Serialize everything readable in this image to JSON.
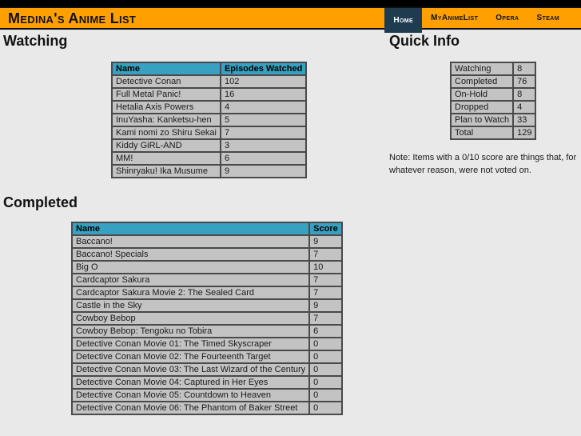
{
  "header": {
    "title": "Medina's Anime List",
    "nav": [
      {
        "label": "Home",
        "active": true
      },
      {
        "label": "MyAnimeList",
        "active": false
      },
      {
        "label": "Opera",
        "active": false
      },
      {
        "label": "Steam",
        "active": false
      }
    ]
  },
  "watching": {
    "heading": "Watching",
    "columns": [
      "Name",
      "Episodes Watched"
    ],
    "rows": [
      [
        "Detective Conan",
        "102"
      ],
      [
        "Full Metal Panic!",
        "16"
      ],
      [
        "Hetalia Axis Powers",
        "4"
      ],
      [
        "InuYasha: Kanketsu-hen",
        "5"
      ],
      [
        "Kami nomi zo Shiru Sekai",
        "7"
      ],
      [
        "Kiddy GiRL-AND",
        "3"
      ],
      [
        "MM!",
        "6"
      ],
      [
        "Shinryaku! Ika Musume",
        "9"
      ]
    ]
  },
  "quick_info": {
    "heading": "Quick Info",
    "rows": [
      [
        "Watching",
        "8"
      ],
      [
        "Completed",
        "76"
      ],
      [
        "On-Hold",
        "8"
      ],
      [
        "Dropped",
        "4"
      ],
      [
        "Plan to Watch",
        "33"
      ],
      [
        "Total",
        "129"
      ]
    ],
    "note": "Note: Items with a 0/10 score are things that, for whatever reason, were not voted on."
  },
  "completed": {
    "heading": "Completed",
    "columns": [
      "Name",
      "Score"
    ],
    "rows": [
      [
        "Baccano!",
        "9"
      ],
      [
        "Baccano! Specials",
        "7"
      ],
      [
        "Big O",
        "10"
      ],
      [
        "Cardcaptor Sakura",
        "7"
      ],
      [
        "Cardcaptor Sakura Movie 2: The Sealed Card",
        "7"
      ],
      [
        "Castle in the Sky",
        "9"
      ],
      [
        "Cowboy Bebop",
        "7"
      ],
      [
        "Cowboy Bebop: Tengoku no Tobira",
        "6"
      ],
      [
        "Detective Conan Movie 01: The Timed Skyscraper",
        "0"
      ],
      [
        "Detective Conan Movie 02: The Fourteenth Target",
        "0"
      ],
      [
        "Detective Conan Movie 03: The Last Wizard of the Century",
        "0"
      ],
      [
        "Detective Conan Movie 04: Captured in Her Eyes",
        "0"
      ],
      [
        "Detective Conan Movie 05: Countdown to Heaven",
        "0"
      ],
      [
        "Detective Conan Movie 06: The Phantom of Baker Street",
        "0"
      ]
    ]
  },
  "colors": {
    "accent_orange": "#ffa000",
    "active_tab_navy": "#1e3b50",
    "table_header_teal": "#38a0c0",
    "cell_gray": "#c3c3c3",
    "page_background": "#e9e9e9"
  }
}
